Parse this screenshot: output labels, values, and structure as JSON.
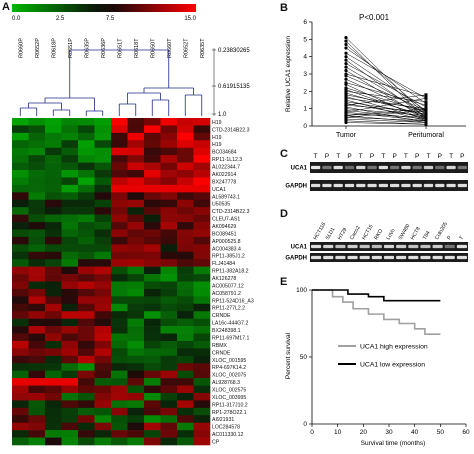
{
  "panel_a": {
    "letter": "A",
    "colorbar": {
      "ticks": [
        "0.0",
        "2.5",
        "7.5",
        "15.0"
      ]
    },
    "dendrogram_ticks": [
      "0.23830265",
      "0.61915135",
      "1.0"
    ],
    "samples": [
      "R0660P",
      "R0652P",
      "R0618P",
      "R0651P",
      "R0635P",
      "R0636P",
      "R0651T",
      "R0618T",
      "R0650T",
      "R0660T",
      "R0652T",
      "R0635T"
    ],
    "genes": [
      "H19",
      "CTD-2314B22.3",
      "H19",
      "H19",
      "BC034684",
      "RP11-1L12.3",
      "AL022344.7",
      "AK022914",
      "BX247778",
      "UCA1",
      "AL589743.1",
      "U50535",
      "CTD-2314B22.3",
      "CLEU7-AS1",
      "AK094629",
      "BC089451",
      "AP000525.8",
      "AC004383.4",
      "RP11-385J1.2",
      "FLJ41484",
      "RP11-382A18.2",
      "AK126278",
      "AC005077.12",
      "AC058791.2",
      "RP11-524D16_A3",
      "RP11-277L2.2",
      "CRNDE",
      "LA16c-444G7.2",
      "BX248398.1",
      "RP11-697M17.1",
      "RBMX",
      "CRNDE",
      "XLOC_001595",
      "RP4-697K14.2",
      "XLOC_002075",
      "AL928768.3",
      "XLOC_002575",
      "XLOC_003995",
      "RP11-317J10.2",
      "RP1-278O22.1",
      "AI921931",
      "LOC284578",
      "AC011330.12",
      "CP"
    ]
  },
  "panel_b": {
    "letter": "B",
    "pvalue": "P<0.001",
    "ylabel": "Relative  UCA1 expression",
    "chart_data": {
      "type": "scatter",
      "categories": [
        "Tumor",
        "Peritumoral"
      ],
      "ylim": [
        0,
        6
      ],
      "yticks": [
        "0",
        "1",
        "2",
        "3",
        "4",
        "5",
        "6"
      ],
      "pairs": [
        [
          5.1,
          0.6
        ],
        [
          4.9,
          0.4
        ],
        [
          4.7,
          0.8
        ],
        [
          4.5,
          1.3
        ],
        [
          4.2,
          1.6
        ],
        [
          4.0,
          0.9
        ],
        [
          3.8,
          0.5
        ],
        [
          3.6,
          1.1
        ],
        [
          3.4,
          0.7
        ],
        [
          3.2,
          0.4
        ],
        [
          3.0,
          1.7
        ],
        [
          2.9,
          0.9
        ],
        [
          2.7,
          0.6
        ],
        [
          2.5,
          1.2
        ],
        [
          2.4,
          0.3
        ],
        [
          2.2,
          0.8
        ],
        [
          2.1,
          0.5
        ],
        [
          2.0,
          1.4
        ],
        [
          1.9,
          0.6
        ],
        [
          1.8,
          0.9
        ],
        [
          1.7,
          0.4
        ],
        [
          1.6,
          1.0
        ],
        [
          1.5,
          0.3
        ],
        [
          1.4,
          0.7
        ],
        [
          1.3,
          0.5
        ],
        [
          1.2,
          0.8
        ],
        [
          1.1,
          0.2
        ],
        [
          1.0,
          0.6
        ],
        [
          0.9,
          0.4
        ],
        [
          0.8,
          0.3
        ],
        [
          0.7,
          0.5
        ],
        [
          0.6,
          0.2
        ],
        [
          0.5,
          0.3
        ],
        [
          0.4,
          0.2
        ],
        [
          0.3,
          0.1
        ],
        [
          0.2,
          0.1
        ],
        [
          0.8,
          1.6
        ],
        [
          0.6,
          1.0
        ],
        [
          1.2,
          1.8
        ],
        [
          0.5,
          0.9
        ]
      ]
    }
  },
  "panel_c": {
    "letter": "C",
    "lane_labels": [
      "T",
      "P",
      "T",
      "P",
      "T",
      "P",
      "T",
      "P",
      "T",
      "P",
      "T",
      "P",
      "T",
      "P"
    ],
    "rows": [
      "UCA1",
      "GAPDH"
    ]
  },
  "panel_d": {
    "letter": "D",
    "lane_labels": [
      "HCT116",
      "SLD1",
      "HT29",
      "Caco2",
      "HCT15",
      "RKO",
      "LoVo",
      "SW480",
      "HCT8",
      "T84",
      "Colo205",
      "P",
      "T"
    ],
    "rows": [
      "UCA1",
      "GAPDH"
    ]
  },
  "panel_e": {
    "letter": "E",
    "chart_data": {
      "type": "line",
      "xlabel": "Survival time (months)",
      "ylabel": "Percent survival",
      "xlim": [
        0,
        60
      ],
      "ylim": [
        0,
        100
      ],
      "xticks": [
        "0",
        "10",
        "20",
        "30",
        "40",
        "50",
        "60"
      ],
      "yticks": [
        "0",
        "50",
        "100"
      ],
      "series": [
        {
          "name": "UCA1 high expression",
          "color": "#a0a0a0",
          "x": [
            0,
            8,
            8,
            12,
            12,
            16,
            16,
            22,
            22,
            28,
            28,
            34,
            34,
            40,
            40,
            44,
            44,
            50
          ],
          "y": [
            100,
            100,
            95,
            95,
            91,
            91,
            86,
            86,
            82,
            82,
            78,
            78,
            75,
            75,
            71,
            71,
            67,
            67
          ]
        },
        {
          "name": "UCA1 low expression",
          "color": "#000000",
          "x": [
            0,
            14,
            14,
            22,
            22,
            28,
            28,
            50
          ],
          "y": [
            100,
            100,
            97,
            97,
            95,
            95,
            92,
            92
          ]
        }
      ]
    }
  }
}
